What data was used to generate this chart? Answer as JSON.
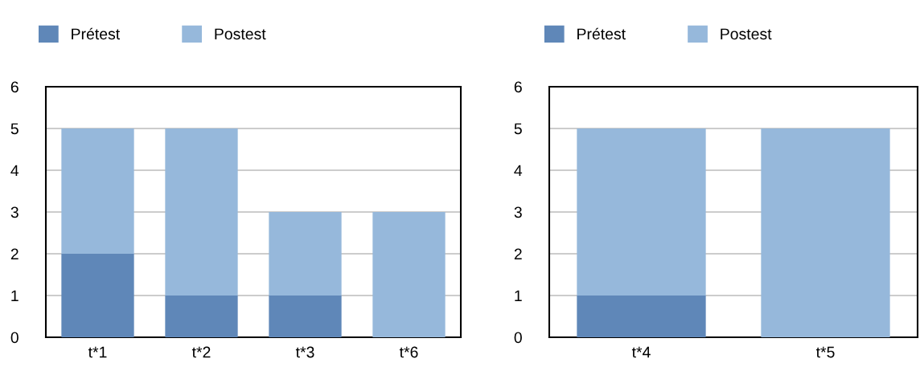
{
  "chart_data": [
    {
      "type": "bar",
      "stacked": true,
      "categories": [
        "t*1",
        "t*2",
        "t*3",
        "t*6"
      ],
      "series": [
        {
          "name": "Prétest",
          "color": "#5f87b8",
          "values": [
            2,
            1,
            1,
            0
          ]
        },
        {
          "name": "Postest",
          "color": "#96b8db",
          "values": [
            3,
            4,
            2,
            3
          ]
        }
      ],
      "ylim": [
        0,
        6
      ],
      "yticks": [
        0,
        1,
        2,
        3,
        4,
        5,
        6
      ],
      "grid": "y",
      "legend": "top"
    },
    {
      "type": "bar",
      "stacked": true,
      "categories": [
        "t*4",
        "t*5"
      ],
      "series": [
        {
          "name": "Prétest",
          "color": "#5f87b8",
          "values": [
            1,
            0
          ]
        },
        {
          "name": "Postest",
          "color": "#96b8db",
          "values": [
            4,
            5
          ]
        }
      ],
      "ylim": [
        0,
        6
      ],
      "yticks": [
        0,
        1,
        2,
        3,
        4,
        5,
        6
      ],
      "grid": "y",
      "legend": "top"
    }
  ]
}
